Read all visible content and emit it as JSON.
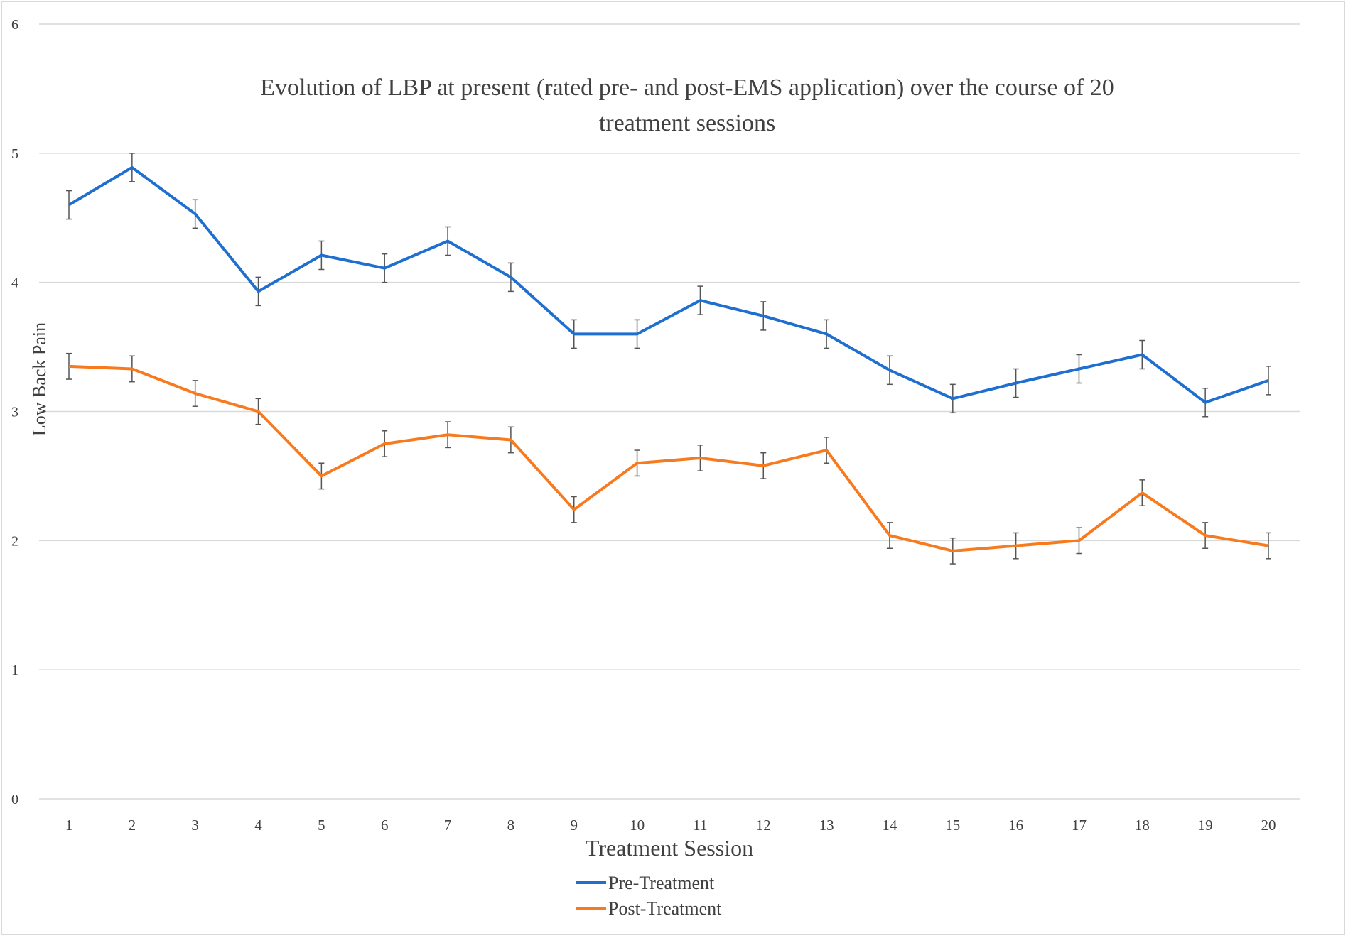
{
  "chart_data": {
    "type": "line",
    "title": "Evolution of LBP at present (rated pre- and post-EMS application) over the course of 20 treatment sessions",
    "title_lines": [
      "Evolution of LBP at present (rated pre- and post-EMS application) over the course of 20",
      "treatment sessions"
    ],
    "xlabel": "Treatment Session",
    "ylabel": "Low Back Pain",
    "ylim": [
      0,
      6
    ],
    "yticks": [
      "0",
      "1",
      "2",
      "3",
      "4",
      "5",
      "6"
    ],
    "categories": [
      "1",
      "2",
      "3",
      "4",
      "5",
      "6",
      "7",
      "8",
      "9",
      "10",
      "11",
      "12",
      "13",
      "14",
      "15",
      "16",
      "17",
      "18",
      "19",
      "20"
    ],
    "grid": true,
    "legend_position": "bottom",
    "error_bars": "±0.1 approx.",
    "series": [
      {
        "name": "Pre-Treatment",
        "color": "#1f6fd0",
        "values": [
          4.6,
          4.89,
          4.53,
          3.93,
          4.21,
          4.11,
          4.32,
          4.04,
          3.6,
          3.6,
          3.86,
          3.74,
          3.6,
          3.32,
          3.1,
          3.22,
          3.33,
          3.44,
          3.07,
          3.24
        ],
        "error": 0.11
      },
      {
        "name": "Post-Treatment",
        "color": "#f77b1e",
        "values": [
          3.35,
          3.33,
          3.14,
          3.0,
          2.5,
          2.75,
          2.82,
          2.78,
          2.24,
          2.6,
          2.64,
          2.58,
          2.7,
          2.04,
          1.92,
          1.96,
          2.0,
          2.37,
          2.04,
          1.96
        ],
        "error": 0.1
      }
    ]
  }
}
